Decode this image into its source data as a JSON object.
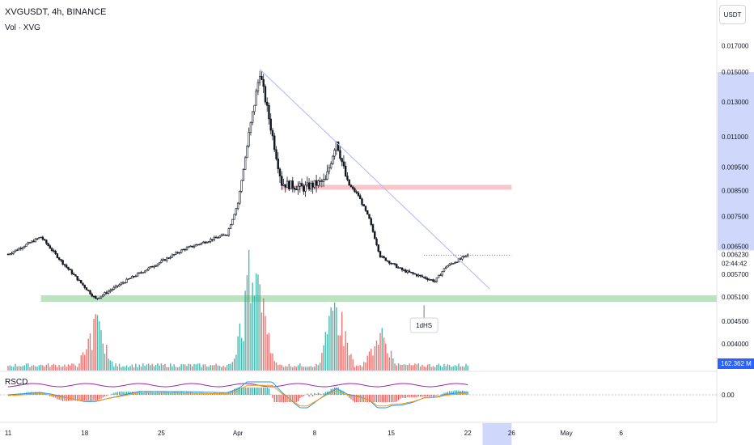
{
  "header": {
    "title": "XVGUSDT, 4h, BINANCE",
    "volume_label": "Vol · XVG",
    "currency_button": "USDT"
  },
  "indicator": {
    "name": "RSCD",
    "zero_label": "0.00"
  },
  "colors": {
    "up": "#26a69a",
    "down": "#ef5350",
    "candle": "#131722",
    "trendline": "#b2b5f7",
    "support_zone": "#b9e4bf",
    "resistance_zone": "#f8c5c9",
    "price_dotted": "#f23645",
    "axis_highlight": "#cfd8fb",
    "volume_tag": "#2962ff"
  },
  "chart_data": {
    "type": "candlestick",
    "symbol": "XVGUSDT",
    "interval": "4h",
    "exchange": "BINANCE",
    "y_scale": "log",
    "price_axis_ticks": [
      "0.017000",
      "0.015000",
      "0.013000",
      "0.011000",
      "0.009500",
      "0.008500",
      "0.007500",
      "0.006500",
      "0.005700",
      "0.005100",
      "0.004500",
      "0.004000"
    ],
    "time_axis_ticks": [
      "11",
      "18",
      "25",
      "Apr",
      "8",
      "15",
      "22",
      "26",
      "May",
      "6"
    ],
    "highlighted_date": "26",
    "last_price": "0.006230",
    "countdown": "02:44:42",
    "volume_value": "162.362 M",
    "price_path_checkpoints": [
      {
        "date": "Mar 11",
        "price": 0.00626
      },
      {
        "date": "Mar 14",
        "price": 0.0068
      },
      {
        "date": "Mar 16",
        "price": 0.006
      },
      {
        "date": "Mar 19",
        "price": 0.00505
      },
      {
        "date": "Mar 22",
        "price": 0.00555
      },
      {
        "date": "Mar 27",
        "price": 0.0064
      },
      {
        "date": "Mar 31",
        "price": 0.0069
      },
      {
        "date": "Apr 1",
        "price": 0.008
      },
      {
        "date": "Apr 2",
        "price": 0.0111
      },
      {
        "date": "Apr 3",
        "price": 0.015
      },
      {
        "date": "Apr 4",
        "price": 0.0115
      },
      {
        "date": "Apr 5",
        "price": 0.0088
      },
      {
        "date": "Apr 7",
        "price": 0.0086
      },
      {
        "date": "Apr 9",
        "price": 0.0089
      },
      {
        "date": "Apr 10",
        "price": 0.0108
      },
      {
        "date": "Apr 11",
        "price": 0.0088
      },
      {
        "date": "Apr 12",
        "price": 0.0083
      },
      {
        "date": "Apr 13",
        "price": 0.0074
      },
      {
        "date": "Apr 14",
        "price": 0.0062
      },
      {
        "date": "Apr 16",
        "price": 0.0058
      },
      {
        "date": "Apr 19",
        "price": 0.0055
      },
      {
        "date": "Apr 20",
        "price": 0.0059
      },
      {
        "date": "Apr 22",
        "price": 0.00623
      }
    ],
    "annotations": {
      "resistance_zone": {
        "price_low": 0.00853,
        "price_high": 0.00873,
        "from": "Apr 5",
        "to": "Apr 26"
      },
      "support_zone": {
        "price_low": 0.00498,
        "price_high": 0.00514,
        "from": "Mar 14",
        "to": "May 11"
      },
      "trendline": {
        "from": {
          "date": "Apr 3",
          "price": 0.0152
        },
        "to": {
          "date": "Apr 24",
          "price": 0.0053
        }
      },
      "current_price_line": {
        "price": 0.00623,
        "from": "Apr 18",
        "to": "Apr 26"
      },
      "pattern_label": "1dHS"
    },
    "volume_peaks_million": [
      {
        "date": "Mar 19",
        "value": 300
      },
      {
        "date": "Apr 2",
        "value": 480
      },
      {
        "date": "Apr 3",
        "value": 400
      },
      {
        "date": "Apr 10",
        "value": 450
      },
      {
        "date": "Apr 14",
        "value": 220
      }
    ],
    "rscd": {
      "zero_line": 0.0
    }
  }
}
